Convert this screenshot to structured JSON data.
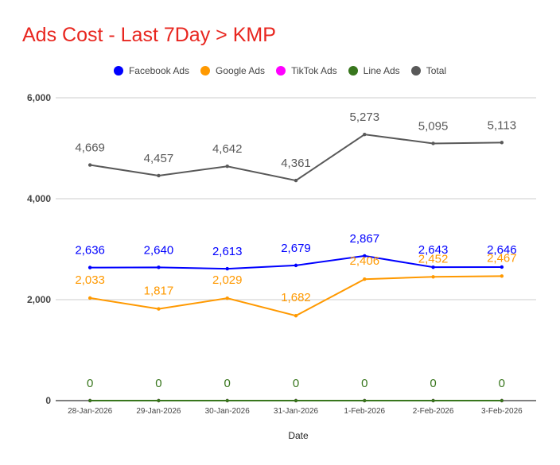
{
  "chart_data": {
    "type": "line",
    "title": "Ads Cost - Last 7Day > KMP",
    "xlabel": "Date",
    "ylabel": "",
    "ylim": [
      0,
      6000
    ],
    "yticks": [
      0,
      2000,
      4000,
      6000
    ],
    "ytick_labels": [
      "0",
      "2,000",
      "4,000",
      "6,000"
    ],
    "grid": true,
    "legend_position": "top-center",
    "categories": [
      "28-Jan-2026",
      "29-Jan-2026",
      "30-Jan-2026",
      "31-Jan-2026",
      "1-Feb-2026",
      "2-Feb-2026",
      "3-Feb-2026"
    ],
    "series": [
      {
        "name": "Facebook Ads",
        "color": "#0000ff",
        "values": [
          2636,
          2640,
          2613,
          2679,
          2867,
          2643,
          2646
        ],
        "labels": [
          "2,636",
          "2,640",
          "2,613",
          "2,679",
          "2,867",
          "2,643",
          "2,646"
        ]
      },
      {
        "name": "Google Ads",
        "color": "#ff9900",
        "values": [
          2033,
          1817,
          2029,
          1682,
          2406,
          2452,
          2467
        ],
        "labels": [
          "2,033",
          "1,817",
          "2,029",
          "1,682",
          "2,406",
          "2,452",
          "2,467"
        ]
      },
      {
        "name": "TikTok Ads",
        "color": "#ff00ff",
        "values": [
          0,
          0,
          0,
          0,
          0,
          0,
          0
        ],
        "labels": [
          "",
          "",
          "",
          "",
          "",
          "",
          ""
        ]
      },
      {
        "name": "Line Ads",
        "color": "#38761d",
        "values": [
          0,
          0,
          0,
          0,
          0,
          0,
          0
        ],
        "labels": [
          "0",
          "0",
          "0",
          "0",
          "0",
          "0",
          "0"
        ]
      },
      {
        "name": "Total",
        "color": "#595959",
        "values": [
          4669,
          4457,
          4642,
          4361,
          5273,
          5095,
          5113
        ],
        "labels": [
          "4,669",
          "4,457",
          "4,642",
          "4,361",
          "5,273",
          "5,095",
          "5,113"
        ]
      }
    ]
  }
}
